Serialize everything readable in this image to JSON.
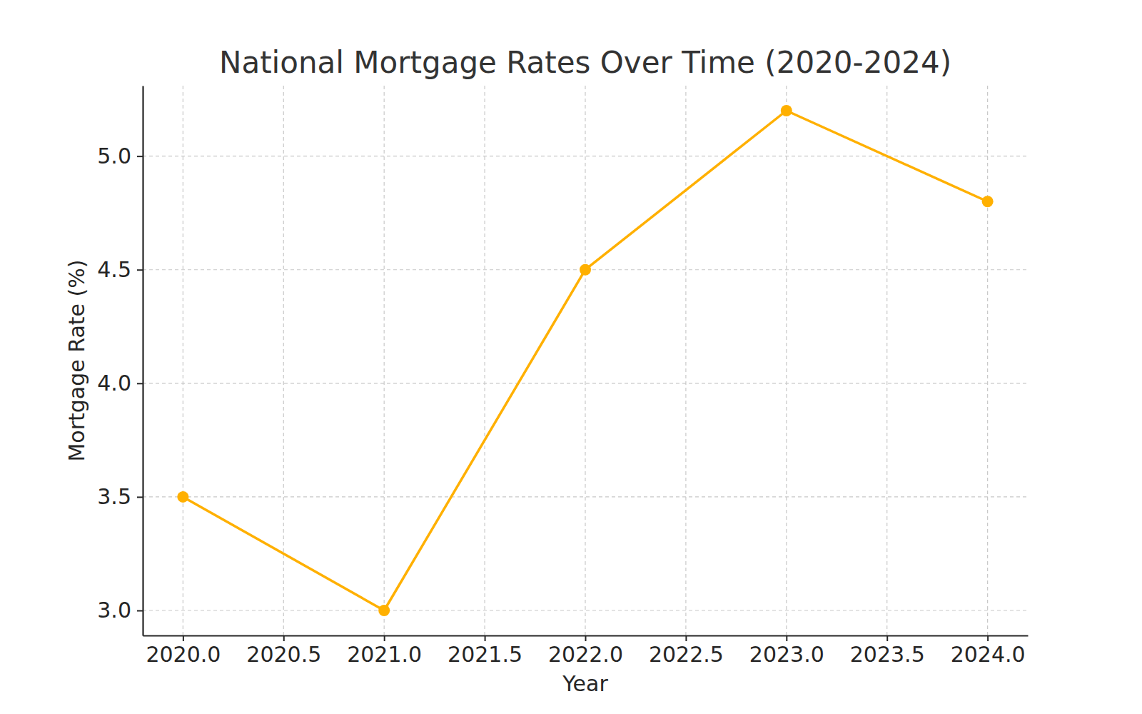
{
  "chart_data": {
    "type": "line",
    "title": "National Mortgage Rates Over Time (2020-2024)",
    "x_label": "Year",
    "y_label": "Mortgage Rate (%)",
    "x": [
      2020,
      2021,
      2022,
      2023,
      2024
    ],
    "values": [
      3.5,
      3.0,
      4.5,
      5.2,
      4.8
    ],
    "color": "#ffb000",
    "marker": "circle",
    "line_style": "solid",
    "xlim": [
      2019.8,
      2024.2
    ],
    "ylim": [
      2.89,
      5.31
    ],
    "xticks": [
      {
        "value": 2020,
        "label": "2020.0"
      },
      2020.5,
      {
        "value": 2021,
        "label": "2021.0"
      },
      2021.5,
      {
        "value": 2022,
        "label": "2022.0"
      },
      2022.5,
      {
        "value": 2023,
        "label": "2023.0"
      },
      2023.5,
      {
        "value": 2024,
        "label": "2024.0"
      }
    ],
    "yticks": [
      {
        "value": 3,
        "label": "3.0"
      },
      3.5,
      {
        "value": 4,
        "label": "4.0"
      },
      4.5,
      {
        "value": 5,
        "label": "5.0"
      }
    ],
    "grid": true
  }
}
